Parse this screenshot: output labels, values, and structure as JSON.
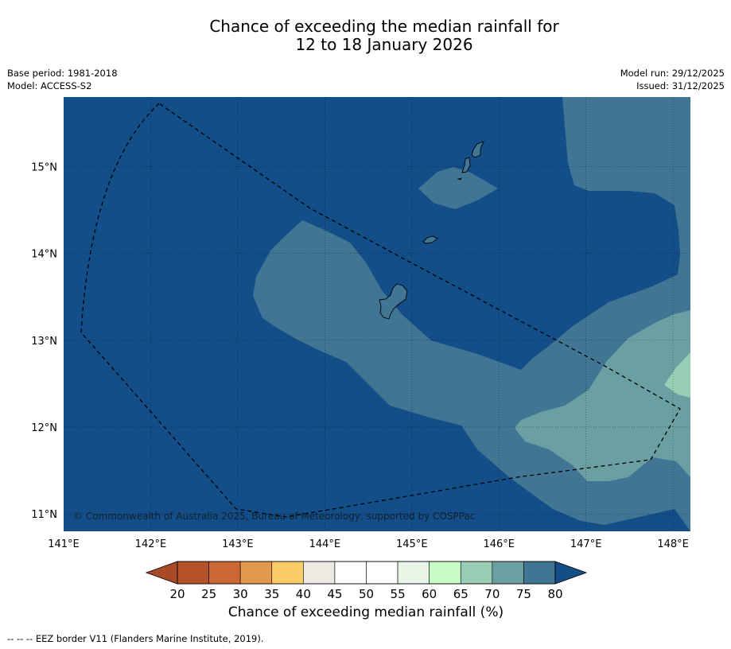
{
  "title": {
    "line1": "Chance of exceeding the median rainfall for",
    "line2": "12 to 18 January 2026"
  },
  "meta": {
    "base_period": "Base period: 1981-2018",
    "model": "Model: ACCESS-S2",
    "model_run": "Model run: 29/12/2025",
    "issued": "Issued: 31/12/2025"
  },
  "map": {
    "lon_range": [
      141.0,
      148.2
    ],
    "lat_range": [
      10.8,
      15.8
    ],
    "x_ticks": [
      "141°E",
      "142°E",
      "143°E",
      "144°E",
      "145°E",
      "146°E",
      "147°E",
      "148°E"
    ],
    "y_ticks": [
      "15°N",
      "14°N",
      "13°N",
      "12°N",
      "11°N"
    ],
    "copyright": "© Commonwealth of Australia 2025, Bureau of Meteorology, supported by COSPPac",
    "colors": {
      "band_75_80": "#417594",
      "band_70_75": "#6ba0a3",
      "band_65_70": "#9acdb6",
      "band_80_plus": "#134e88"
    }
  },
  "colorbar": {
    "ticks": [
      "20",
      "25",
      "30",
      "35",
      "40",
      "45",
      "50",
      "55",
      "60",
      "65",
      "70",
      "75",
      "80"
    ],
    "colors": [
      "#b2512a",
      "#cd6834",
      "#e19a4c",
      "#fdcc6a",
      "#ede9e3",
      "#ffffff",
      "#ffffff",
      "#e8f6e8",
      "#c9fdc8",
      "#9acdb6",
      "#6ba0a3",
      "#417594"
    ],
    "under_color": "#a94a26",
    "over_color": "#134e88",
    "label": "Chance of exceeding median rainfall (%)"
  },
  "footnote": "--  --  -- EEZ border V11 (Flanders Marine Institute, 2019)."
}
